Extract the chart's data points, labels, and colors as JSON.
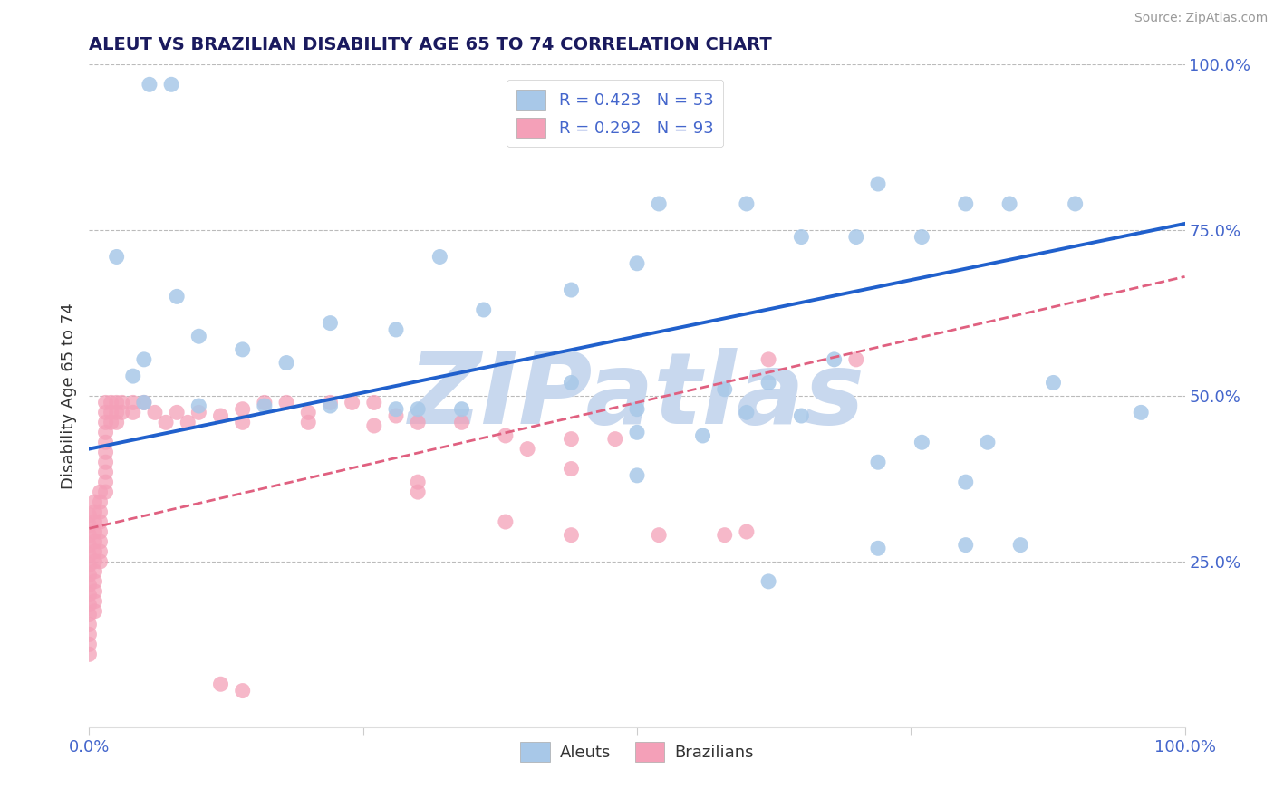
{
  "title": "ALEUT VS BRAZILIAN DISABILITY AGE 65 TO 74 CORRELATION CHART",
  "source_text": "Source: ZipAtlas.com",
  "ylabel": "Disability Age 65 to 74",
  "xlim": [
    0.0,
    1.0
  ],
  "ylim": [
    0.0,
    1.0
  ],
  "xticks": [
    0.0,
    0.25,
    0.5,
    0.75,
    1.0
  ],
  "xticklabels": [
    "0.0%",
    "",
    "",
    "",
    "100.0%"
  ],
  "ytick_positions": [
    0.25,
    0.5,
    0.75,
    1.0
  ],
  "yticklabels_right": [
    "25.0%",
    "50.0%",
    "75.0%",
    "100.0%"
  ],
  "aleut_R": 0.423,
  "aleut_N": 53,
  "brazil_R": 0.292,
  "brazil_N": 93,
  "aleut_color": "#a8c8e8",
  "brazil_color": "#f4a0b8",
  "aleut_line_color": "#2060cc",
  "brazil_line_color": "#e06080",
  "title_color": "#1a1a5e",
  "axis_label_color": "#333333",
  "tick_label_color": "#4466cc",
  "legend_r_color": "#4466cc",
  "watermark_color": "#c8d8ee",
  "grid_color": "#bbbbbb",
  "aleut_scatter": [
    [
      0.055,
      0.97
    ],
    [
      0.075,
      0.97
    ],
    [
      0.025,
      0.71
    ],
    [
      0.32,
      0.71
    ],
    [
      0.08,
      0.65
    ],
    [
      0.1,
      0.59
    ],
    [
      0.14,
      0.57
    ],
    [
      0.18,
      0.55
    ],
    [
      0.04,
      0.53
    ],
    [
      0.52,
      0.79
    ],
    [
      0.6,
      0.79
    ],
    [
      0.72,
      0.82
    ],
    [
      0.8,
      0.79
    ],
    [
      0.84,
      0.79
    ],
    [
      0.9,
      0.79
    ],
    [
      0.65,
      0.74
    ],
    [
      0.7,
      0.74
    ],
    [
      0.76,
      0.74
    ],
    [
      0.5,
      0.7
    ],
    [
      0.44,
      0.66
    ],
    [
      0.36,
      0.63
    ],
    [
      0.22,
      0.61
    ],
    [
      0.28,
      0.6
    ],
    [
      0.05,
      0.555
    ],
    [
      0.68,
      0.555
    ],
    [
      0.44,
      0.52
    ],
    [
      0.5,
      0.48
    ],
    [
      0.58,
      0.51
    ],
    [
      0.62,
      0.52
    ],
    [
      0.88,
      0.52
    ],
    [
      0.05,
      0.49
    ],
    [
      0.1,
      0.485
    ],
    [
      0.16,
      0.485
    ],
    [
      0.22,
      0.485
    ],
    [
      0.28,
      0.48
    ],
    [
      0.3,
      0.48
    ],
    [
      0.34,
      0.48
    ],
    [
      0.6,
      0.475
    ],
    [
      0.65,
      0.47
    ],
    [
      0.96,
      0.475
    ],
    [
      0.5,
      0.445
    ],
    [
      0.56,
      0.44
    ],
    [
      0.76,
      0.43
    ],
    [
      0.82,
      0.43
    ],
    [
      0.72,
      0.4
    ],
    [
      0.5,
      0.38
    ],
    [
      0.8,
      0.37
    ],
    [
      0.72,
      0.27
    ],
    [
      0.62,
      0.22
    ],
    [
      0.8,
      0.275
    ],
    [
      0.85,
      0.275
    ]
  ],
  "brazil_scatter": [
    [
      0.0,
      0.32
    ],
    [
      0.0,
      0.305
    ],
    [
      0.0,
      0.29
    ],
    [
      0.0,
      0.275
    ],
    [
      0.0,
      0.26
    ],
    [
      0.0,
      0.245
    ],
    [
      0.0,
      0.23
    ],
    [
      0.0,
      0.215
    ],
    [
      0.0,
      0.2
    ],
    [
      0.0,
      0.185
    ],
    [
      0.0,
      0.17
    ],
    [
      0.0,
      0.155
    ],
    [
      0.0,
      0.14
    ],
    [
      0.0,
      0.125
    ],
    [
      0.0,
      0.11
    ],
    [
      0.005,
      0.34
    ],
    [
      0.005,
      0.325
    ],
    [
      0.005,
      0.31
    ],
    [
      0.005,
      0.295
    ],
    [
      0.005,
      0.28
    ],
    [
      0.005,
      0.265
    ],
    [
      0.005,
      0.25
    ],
    [
      0.005,
      0.235
    ],
    [
      0.005,
      0.22
    ],
    [
      0.005,
      0.205
    ],
    [
      0.005,
      0.19
    ],
    [
      0.005,
      0.175
    ],
    [
      0.01,
      0.355
    ],
    [
      0.01,
      0.34
    ],
    [
      0.01,
      0.325
    ],
    [
      0.01,
      0.31
    ],
    [
      0.01,
      0.295
    ],
    [
      0.01,
      0.28
    ],
    [
      0.01,
      0.265
    ],
    [
      0.01,
      0.25
    ],
    [
      0.015,
      0.49
    ],
    [
      0.015,
      0.475
    ],
    [
      0.015,
      0.46
    ],
    [
      0.015,
      0.445
    ],
    [
      0.015,
      0.43
    ],
    [
      0.015,
      0.415
    ],
    [
      0.015,
      0.4
    ],
    [
      0.015,
      0.385
    ],
    [
      0.015,
      0.37
    ],
    [
      0.015,
      0.355
    ],
    [
      0.02,
      0.49
    ],
    [
      0.02,
      0.475
    ],
    [
      0.02,
      0.46
    ],
    [
      0.025,
      0.49
    ],
    [
      0.025,
      0.475
    ],
    [
      0.025,
      0.46
    ],
    [
      0.03,
      0.49
    ],
    [
      0.03,
      0.475
    ],
    [
      0.04,
      0.49
    ],
    [
      0.04,
      0.475
    ],
    [
      0.05,
      0.49
    ],
    [
      0.06,
      0.475
    ],
    [
      0.07,
      0.46
    ],
    [
      0.08,
      0.475
    ],
    [
      0.09,
      0.46
    ],
    [
      0.1,
      0.475
    ],
    [
      0.12,
      0.47
    ],
    [
      0.14,
      0.48
    ],
    [
      0.16,
      0.49
    ],
    [
      0.18,
      0.49
    ],
    [
      0.2,
      0.475
    ],
    [
      0.22,
      0.49
    ],
    [
      0.24,
      0.49
    ],
    [
      0.26,
      0.49
    ],
    [
      0.28,
      0.47
    ],
    [
      0.14,
      0.46
    ],
    [
      0.2,
      0.46
    ],
    [
      0.26,
      0.455
    ],
    [
      0.3,
      0.46
    ],
    [
      0.34,
      0.46
    ],
    [
      0.38,
      0.44
    ],
    [
      0.4,
      0.42
    ],
    [
      0.44,
      0.435
    ],
    [
      0.48,
      0.435
    ],
    [
      0.44,
      0.39
    ],
    [
      0.3,
      0.37
    ],
    [
      0.3,
      0.355
    ],
    [
      0.38,
      0.31
    ],
    [
      0.44,
      0.29
    ],
    [
      0.52,
      0.29
    ],
    [
      0.6,
      0.295
    ],
    [
      0.62,
      0.555
    ],
    [
      0.7,
      0.555
    ],
    [
      0.58,
      0.29
    ],
    [
      0.12,
      0.065
    ],
    [
      0.14,
      0.055
    ]
  ],
  "aleut_trendline_x": [
    0.0,
    1.0
  ],
  "aleut_trendline_y": [
    0.42,
    0.76
  ],
  "brazil_trendline_x": [
    0.0,
    1.0
  ],
  "brazil_trendline_y": [
    0.3,
    0.68
  ]
}
